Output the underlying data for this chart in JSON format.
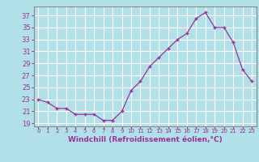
{
  "x": [
    0,
    1,
    2,
    3,
    4,
    5,
    6,
    7,
    8,
    9,
    10,
    11,
    12,
    13,
    14,
    15,
    16,
    17,
    18,
    19,
    20,
    21,
    22,
    23
  ],
  "y": [
    23,
    22.5,
    21.5,
    21.5,
    20.5,
    20.5,
    20.5,
    19.5,
    19.5,
    21,
    24.5,
    26,
    28.5,
    30,
    31.5,
    33,
    34,
    36.5,
    37.5,
    35,
    35,
    32.5,
    28,
    26
  ],
  "line_color": "#993399",
  "marker": "+",
  "bg_color": "#b2e0e8",
  "grid_color": "#ffffff",
  "text_color": "#993399",
  "spine_color": "#888888",
  "xlabel": "Windchill (Refroidissement éolien,°C)",
  "ylabel_ticks": [
    19,
    21,
    23,
    25,
    27,
    29,
    31,
    33,
    35,
    37
  ],
  "xtick_labels": [
    "0",
    "1",
    "2",
    "3",
    "4",
    "5",
    "6",
    "7",
    "8",
    "9",
    "10",
    "11",
    "12",
    "13",
    "14",
    "15",
    "16",
    "17",
    "18",
    "19",
    "20",
    "21",
    "22",
    "23"
  ],
  "ylim": [
    18.5,
    38.5
  ],
  "xlim": [
    -0.5,
    23.5
  ]
}
